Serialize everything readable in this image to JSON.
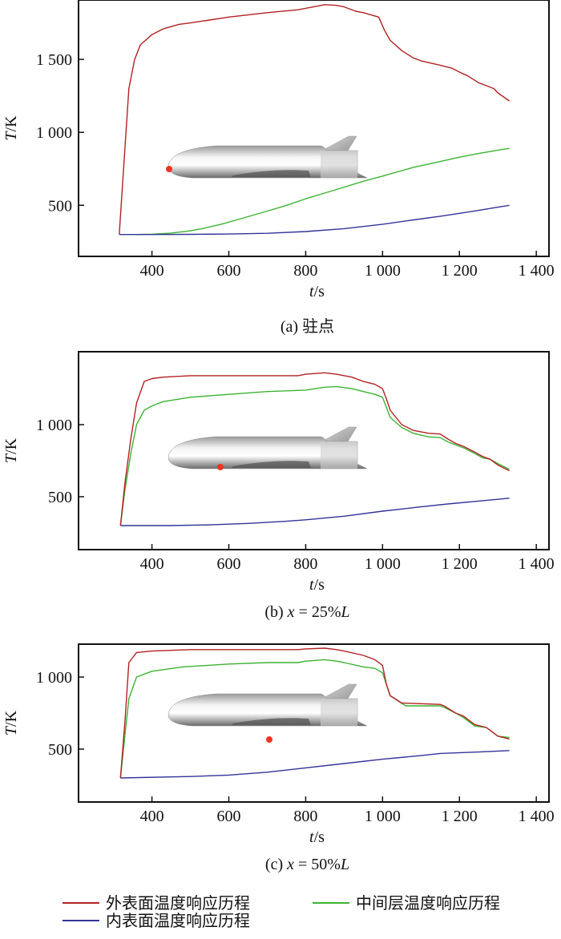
{
  "chart_data": [
    {
      "type": "line",
      "caption": "(a) 驻点",
      "xlabel": "t/s",
      "ylabel": "T/K",
      "xlim": [
        209,
        1433
      ],
      "ylim": [
        150,
        1907
      ],
      "xticks": [
        400,
        600,
        800,
        1000,
        1200,
        1400
      ],
      "xtick_labels": [
        "400",
        "600",
        "800",
        "1 000",
        "1 200",
        "1 400"
      ],
      "yticks": [
        500,
        1000,
        1500
      ],
      "ytick_labels": [
        "500",
        "1 000",
        "1 500"
      ],
      "marker_position": "stagnation point (nose)",
      "series": [
        {
          "key": "outer",
          "x": [
            315,
            330,
            340,
            355,
            370,
            400,
            430,
            470,
            500,
            550,
            600,
            700,
            780,
            820,
            850,
            880,
            900,
            930,
            950,
            990,
            1005,
            1020,
            1050,
            1080,
            1100,
            1150,
            1180,
            1210,
            1220,
            1250,
            1270,
            1290,
            1300,
            1330
          ],
          "y": [
            300,
            900,
            1300,
            1500,
            1600,
            1670,
            1710,
            1740,
            1750,
            1770,
            1790,
            1820,
            1840,
            1860,
            1875,
            1870,
            1860,
            1830,
            1820,
            1790,
            1700,
            1630,
            1560,
            1510,
            1490,
            1460,
            1440,
            1400,
            1390,
            1340,
            1320,
            1300,
            1270,
            1215
          ]
        },
        {
          "key": "middle",
          "x": [
            360,
            400,
            450,
            500,
            530,
            580,
            620,
            700,
            750,
            800,
            870,
            950,
            1000,
            1080,
            1150,
            1200,
            1250,
            1300,
            1330
          ],
          "y": [
            300,
            302,
            310,
            325,
            340,
            370,
            400,
            460,
            500,
            545,
            600,
            665,
            700,
            760,
            800,
            830,
            855,
            878,
            890
          ]
        },
        {
          "key": "inner",
          "x": [
            315,
            400,
            500,
            600,
            700,
            800,
            900,
            950,
            1000,
            1080,
            1150,
            1200,
            1250,
            1300,
            1330
          ],
          "y": [
            300,
            300,
            301,
            303,
            308,
            320,
            340,
            355,
            370,
            400,
            425,
            445,
            465,
            487,
            500
          ]
        }
      ]
    },
    {
      "type": "line",
      "caption": "(b) x = 25%L",
      "xlabel": "t/s",
      "ylabel": "T/K",
      "xlim": [
        209,
        1433
      ],
      "ylim": [
        133,
        1506
      ],
      "xticks": [
        400,
        600,
        800,
        1000,
        1200,
        1400
      ],
      "xtick_labels": [
        "400",
        "600",
        "800",
        "1 000",
        "1 200",
        "1 400"
      ],
      "yticks": [
        500,
        1000
      ],
      "ytick_labels": [
        "500",
        "1 000"
      ],
      "marker_position": "x = 25%L",
      "series": [
        {
          "key": "outer",
          "x": [
            318,
            330,
            345,
            360,
            380,
            400,
            430,
            500,
            600,
            700,
            780,
            800,
            850,
            880,
            920,
            950,
            980,
            1000,
            1010,
            1020,
            1050,
            1080,
            1120,
            1150,
            1170,
            1190,
            1210,
            1240,
            1260,
            1280,
            1300,
            1330
          ],
          "y": [
            300,
            600,
            900,
            1150,
            1300,
            1320,
            1330,
            1340,
            1340,
            1340,
            1340,
            1350,
            1360,
            1350,
            1330,
            1300,
            1280,
            1250,
            1180,
            1100,
            1000,
            960,
            940,
            935,
            900,
            870,
            850,
            810,
            780,
            760,
            720,
            680
          ]
        },
        {
          "key": "middle",
          "x": [
            318,
            330,
            345,
            360,
            380,
            400,
            430,
            500,
            600,
            700,
            800,
            850,
            880,
            920,
            950,
            980,
            1000,
            1010,
            1020,
            1050,
            1080,
            1120,
            1150,
            1170,
            1190,
            1210,
            1240,
            1260,
            1280,
            1300,
            1330
          ],
          "y": [
            300,
            550,
            800,
            1000,
            1100,
            1130,
            1160,
            1190,
            1210,
            1230,
            1240,
            1260,
            1265,
            1250,
            1230,
            1210,
            1190,
            1120,
            1050,
            980,
            940,
            915,
            910,
            880,
            860,
            840,
            800,
            770,
            760,
            730,
            690
          ]
        },
        {
          "key": "inner",
          "x": [
            318,
            450,
            550,
            650,
            750,
            800,
            900,
            1000,
            1100,
            1170,
            1250,
            1330
          ],
          "y": [
            300,
            300,
            305,
            315,
            330,
            340,
            365,
            400,
            430,
            450,
            470,
            490
          ]
        }
      ]
    },
    {
      "type": "line",
      "caption": "(c) x = 50%L",
      "xlabel": "t/s",
      "ylabel": "T/K",
      "xlim": [
        209,
        1433
      ],
      "ylim": [
        133,
        1228
      ],
      "xticks": [
        400,
        600,
        800,
        1000,
        1200,
        1400
      ],
      "xtick_labels": [
        "400",
        "600",
        "800",
        "1 000",
        "1 200",
        "1 400"
      ],
      "yticks": [
        500,
        1000
      ],
      "ytick_labels": [
        "500",
        "1 000"
      ],
      "marker_position": "x = 50%L",
      "series": [
        {
          "key": "outer",
          "x": [
            318,
            330,
            340,
            360,
            400,
            500,
            600,
            780,
            800,
            850,
            880,
            900,
            950,
            980,
            1000,
            1010,
            1020,
            1050,
            1150,
            1160,
            1190,
            1210,
            1240,
            1270,
            1280,
            1300,
            1330
          ],
          "y": [
            300,
            700,
            1100,
            1170,
            1180,
            1190,
            1190,
            1190,
            1195,
            1200,
            1190,
            1180,
            1150,
            1120,
            1080,
            950,
            870,
            820,
            810,
            800,
            750,
            730,
            670,
            650,
            630,
            590,
            570
          ]
        },
        {
          "key": "middle",
          "x": [
            318,
            330,
            340,
            360,
            400,
            480,
            600,
            700,
            780,
            800,
            850,
            880,
            900,
            950,
            980,
            1000,
            1010,
            1020,
            1060,
            1150,
            1160,
            1190,
            1210,
            1240,
            1270,
            1280,
            1300,
            1330
          ],
          "y": [
            300,
            600,
            850,
            1000,
            1040,
            1070,
            1090,
            1100,
            1100,
            1110,
            1120,
            1110,
            1100,
            1070,
            1060,
            1030,
            950,
            870,
            800,
            800,
            790,
            750,
            720,
            660,
            650,
            630,
            590,
            580
          ]
        },
        {
          "key": "inner",
          "x": [
            318,
            500,
            600,
            700,
            800,
            900,
            1000,
            1100,
            1150,
            1250,
            1330
          ],
          "y": [
            300,
            310,
            320,
            340,
            370,
            400,
            430,
            455,
            470,
            480,
            490
          ]
        }
      ]
    }
  ],
  "legend": {
    "placement": "bottom",
    "items": [
      {
        "key": "outer",
        "label": "外表面温度响应历程",
        "color": "#b22222"
      },
      {
        "key": "middle",
        "label": "中间层温度响应历程",
        "color": "#3cb332"
      },
      {
        "key": "inner",
        "label": "内表面温度响应历程",
        "color": "#33339a"
      }
    ]
  },
  "colors": {
    "marker": "#ee3322",
    "axis": "#111111"
  }
}
